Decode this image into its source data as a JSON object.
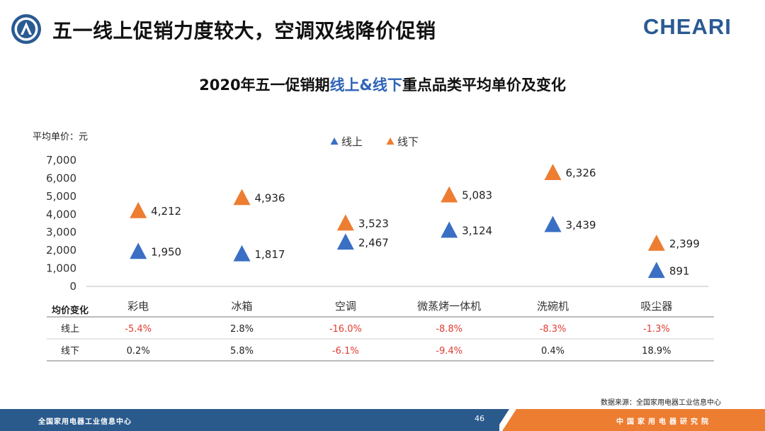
{
  "header": {
    "title": "五一线上促销力度较大，空调双线降价促销",
    "brand": "CHEARI"
  },
  "chart_data": {
    "type": "scatter",
    "title_parts": [
      "2020年五一促销期",
      "线上&线下",
      "重点品类平均单价及变化"
    ],
    "ylabel": "平均单价：元",
    "ylim": [
      0,
      7000
    ],
    "yticks": [
      "7,000",
      "6,000",
      "5,000",
      "4,000",
      "3,000",
      "2,000",
      "1,000",
      "0"
    ],
    "categories": [
      "彩电",
      "冰箱",
      "空调",
      "微蒸烤一体机",
      "洗碗机",
      "吸尘器"
    ],
    "series": [
      {
        "name": "线上",
        "color": "#3a6fc4",
        "values": [
          1950,
          1817,
          2467,
          3124,
          3439,
          891
        ],
        "labels": [
          "1,950",
          "1,817",
          "2,467",
          "3,124",
          "3,439",
          "891"
        ]
      },
      {
        "name": "线下",
        "color": "#ed7d31",
        "values": [
          4212,
          4936,
          3523,
          5083,
          6326,
          2399
        ],
        "labels": [
          "4,212",
          "4,936",
          "3,523",
          "5,083",
          "6,326",
          "2,399"
        ]
      }
    ],
    "legend": "top-center",
    "table": {
      "header": "均价变化",
      "rows": [
        {
          "label": "线上",
          "values": [
            "-5.4%",
            "2.8%",
            "-16.0%",
            "-8.8%",
            "-8.3%",
            "-1.3%"
          ]
        },
        {
          "label": "线下",
          "values": [
            "0.2%",
            "5.8%",
            "-6.1%",
            "-9.4%",
            "0.4%",
            "18.9%"
          ]
        }
      ]
    }
  },
  "footer": {
    "source": "数据来源：全国家用电器工业信息中心",
    "left_text": "全国家用电器工业信息中心",
    "page_number": "46",
    "right_text": "中国家用电器研究院"
  },
  "colors": {
    "negative": "#e03c31",
    "footer_blue": "#2a5a8c",
    "footer_orange": "#ed7d31"
  }
}
